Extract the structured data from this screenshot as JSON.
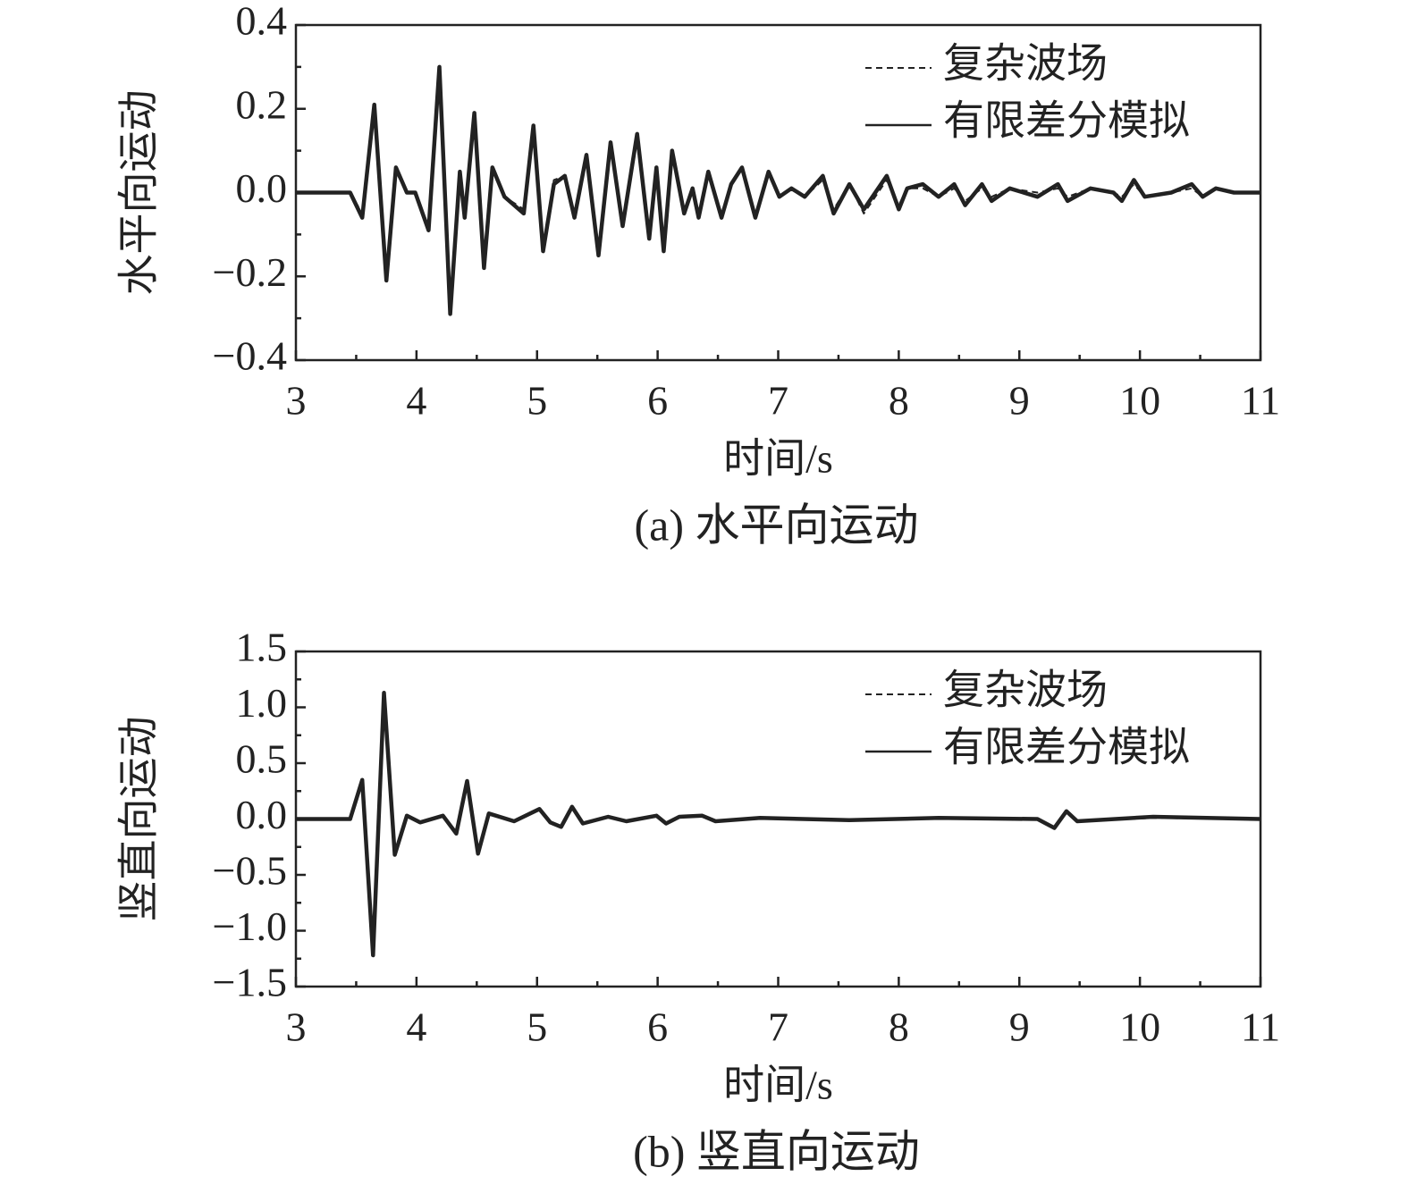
{
  "chart_data": [
    {
      "type": "line",
      "ylabel": "水平向运动",
      "xlabel": "时间/s",
      "caption": "(a) 水平向运动",
      "legend": "upper right",
      "xlim": [
        3,
        11
      ],
      "xticks": [
        3,
        4,
        5,
        6,
        7,
        8,
        9,
        10,
        11
      ],
      "ylim": [
        -0.4,
        0.4
      ],
      "yticks": [
        0.4,
        0.2,
        {
          "value": 0,
          "label": "0.0"
        },
        {
          "value": -0.2,
          "label": "−0.2"
        },
        {
          "value": -0.4,
          "label": "−0.4"
        }
      ],
      "x": [
        3,
        3.45,
        3.55,
        3.65,
        3.75,
        3.83,
        3.92,
        3.99,
        4.1,
        4.19,
        4.28,
        4.36,
        4.4,
        4.48,
        4.56,
        4.63,
        4.73,
        4.89,
        4.97,
        5.05,
        5.14,
        5.23,
        5.31,
        5.41,
        5.51,
        5.61,
        5.71,
        5.83,
        5.93,
        5.99,
        6.05,
        6.12,
        6.22,
        6.29,
        6.34,
        6.42,
        6.53,
        6.61,
        6.7,
        6.81,
        6.92,
        7.01,
        7.11,
        7.22,
        7.37,
        7.46,
        7.59,
        7.71,
        7.9,
        8.0,
        8.07,
        8.2,
        8.33,
        8.46,
        8.55,
        8.69,
        8.77,
        8.92,
        9.15,
        9.32,
        9.4,
        9.59,
        9.78,
        9.85,
        9.95,
        10.04,
        10.26,
        10.43,
        10.52,
        10.63,
        10.78,
        11
      ],
      "series": [
        {
          "name": "复杂波场",
          "color": "#222222",
          "linestyle": "dashed",
          "values": [
            0,
            0,
            -0.05,
            0.2,
            -0.2,
            0.05,
            0,
            0,
            -0.08,
            0.29,
            -0.28,
            0.05,
            -0.05,
            0.18,
            -0.17,
            0.06,
            -0.01,
            -0.04,
            0.15,
            -0.13,
            0.03,
            0.04,
            -0.05,
            0.08,
            -0.14,
            0.12,
            -0.08,
            0.13,
            -0.1,
            0.06,
            -0.13,
            0.1,
            -0.05,
            0.01,
            -0.05,
            0.05,
            -0.05,
            0.02,
            0.06,
            -0.06,
            0.05,
            -0.01,
            0.01,
            -0.01,
            0.03,
            -0.04,
            0.02,
            -0.05,
            0.03,
            -0.03,
            0.01,
            0.01,
            -0.01,
            0.01,
            -0.02,
            0.01,
            -0.01,
            0.01,
            0,
            0.01,
            -0.01,
            0.01,
            0,
            -0.01,
            0.02,
            -0.01,
            0,
            0.01,
            -0.01,
            0.01,
            0,
            0
          ]
        },
        {
          "name": "有限差分模拟",
          "color": "#222222",
          "linestyle": "solid",
          "values": [
            0,
            0,
            -0.06,
            0.21,
            -0.21,
            0.06,
            0,
            0,
            -0.09,
            0.3,
            -0.29,
            0.05,
            -0.06,
            0.19,
            -0.18,
            0.06,
            -0.01,
            -0.05,
            0.16,
            -0.14,
            0.02,
            0.04,
            -0.06,
            0.09,
            -0.15,
            0.12,
            -0.08,
            0.14,
            -0.11,
            0.06,
            -0.14,
            0.1,
            -0.05,
            0.01,
            -0.06,
            0.05,
            -0.06,
            0.02,
            0.06,
            -0.06,
            0.05,
            -0.01,
            0.01,
            -0.01,
            0.04,
            -0.05,
            0.02,
            -0.04,
            0.04,
            -0.04,
            0.01,
            0.02,
            -0.01,
            0.02,
            -0.03,
            0.02,
            -0.02,
            0.01,
            -0.01,
            0.02,
            -0.02,
            0.01,
            0,
            -0.02,
            0.03,
            -0.01,
            0,
            0.02,
            -0.01,
            0.01,
            0,
            0
          ]
        }
      ]
    },
    {
      "type": "line",
      "ylabel": "竖直向运动",
      "xlabel": "时间/s",
      "caption": "(b) 竖直向运动",
      "legend": "upper right",
      "xlim": [
        3,
        11
      ],
      "xticks": [
        3,
        4,
        5,
        6,
        7,
        8,
        9,
        10,
        11
      ],
      "ylim": [
        -1.5,
        1.5
      ],
      "yticks": [
        1.5,
        {
          "value": 1,
          "label": "1.0"
        },
        0.5,
        {
          "value": 0,
          "label": "0.0"
        },
        {
          "value": -0.5,
          "label": "−0.5"
        },
        {
          "value": -1,
          "label": "−1.0"
        },
        {
          "value": -1.5,
          "label": "−1.5"
        }
      ],
      "x": [
        3,
        3.45,
        3.55,
        3.64,
        3.73,
        3.82,
        3.92,
        4.03,
        4.22,
        4.33,
        4.42,
        4.51,
        4.6,
        4.81,
        5.02,
        5.11,
        5.2,
        5.29,
        5.38,
        5.59,
        5.74,
        5.99,
        6.07,
        6.18,
        6.37,
        6.48,
        6.85,
        7.59,
        8.33,
        9.15,
        9.29,
        9.39,
        9.48,
        10.11,
        11
      ],
      "series": [
        {
          "name": "复杂波场",
          "color": "#222222",
          "linestyle": "dashed",
          "values": [
            0,
            0,
            0.34,
            -1.2,
            1.11,
            -0.3,
            0.03,
            -0.03,
            0.03,
            -0.12,
            0.33,
            -0.3,
            0.05,
            -0.02,
            0.08,
            -0.03,
            -0.06,
            0.1,
            -0.04,
            0.02,
            -0.02,
            0.03,
            -0.03,
            0.02,
            0.02,
            -0.02,
            0.01,
            -0.01,
            0.01,
            0,
            -0.07,
            0.06,
            -0.02,
            0.01,
            0
          ]
        },
        {
          "name": "有限差分模拟",
          "color": "#222222",
          "linestyle": "solid",
          "values": [
            0,
            0,
            0.35,
            -1.22,
            1.13,
            -0.32,
            0.03,
            -0.03,
            0.03,
            -0.13,
            0.34,
            -0.31,
            0.05,
            -0.02,
            0.09,
            -0.03,
            -0.07,
            0.11,
            -0.04,
            0.02,
            -0.02,
            0.03,
            -0.04,
            0.02,
            0.03,
            -0.02,
            0.01,
            -0.01,
            0.01,
            0,
            -0.08,
            0.07,
            -0.02,
            0.02,
            0
          ]
        }
      ]
    }
  ]
}
